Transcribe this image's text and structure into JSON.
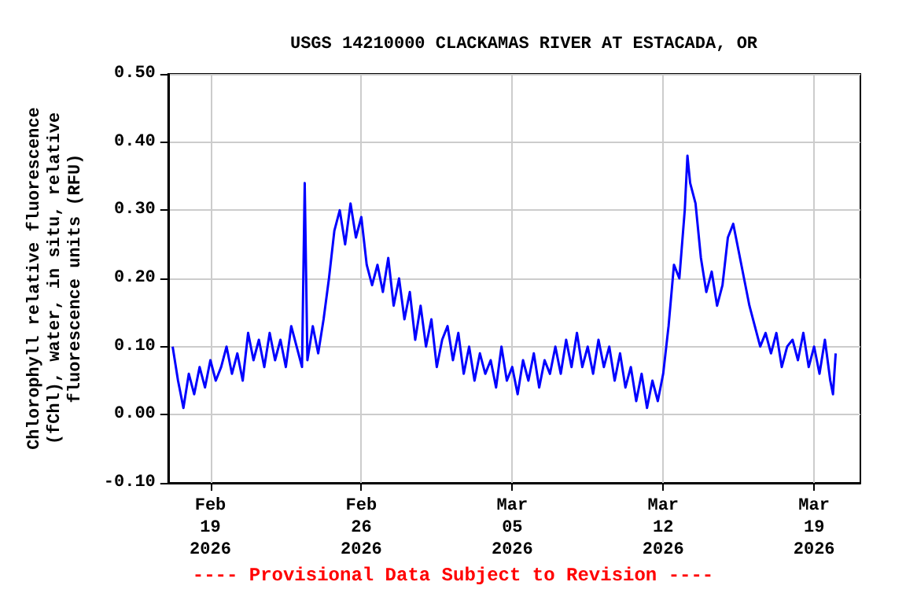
{
  "chart_data": {
    "type": "line",
    "title": "USGS 14210000 CLACKAMAS RIVER AT ESTACADA, OR",
    "ylabel": "Chlorophyll relative fluorescence\n(fChl), water, in situ, relative\nfluorescence units (RFU)",
    "annotations": [
      "---- Provisional Data Subject to Revision ----"
    ],
    "x": [
      "2026-02-17T06:00",
      "2026-02-17T12:00",
      "2026-02-17T18:00",
      "2026-02-18T00:00",
      "2026-02-18T06:00",
      "2026-02-18T12:00",
      "2026-02-18T18:00",
      "2026-02-19T00:00",
      "2026-02-19T06:00",
      "2026-02-19T12:00",
      "2026-02-19T18:00",
      "2026-02-20T00:00",
      "2026-02-20T06:00",
      "2026-02-20T12:00",
      "2026-02-20T18:00",
      "2026-02-21T00:00",
      "2026-02-21T06:00",
      "2026-02-21T12:00",
      "2026-02-21T18:00",
      "2026-02-22T00:00",
      "2026-02-22T06:00",
      "2026-02-22T12:00",
      "2026-02-22T18:00",
      "2026-02-23T00:00",
      "2026-02-23T06:00",
      "2026-02-23T09:00",
      "2026-02-23T12:00",
      "2026-02-23T18:00",
      "2026-02-24T00:00",
      "2026-02-24T06:00",
      "2026-02-24T12:00",
      "2026-02-24T18:00",
      "2026-02-25T00:00",
      "2026-02-25T06:00",
      "2026-02-25T12:00",
      "2026-02-25T18:00",
      "2026-02-26T00:00",
      "2026-02-26T06:00",
      "2026-02-26T12:00",
      "2026-02-26T18:00",
      "2026-02-27T00:00",
      "2026-02-27T06:00",
      "2026-02-27T12:00",
      "2026-02-27T18:00",
      "2026-02-28T00:00",
      "2026-02-28T06:00",
      "2026-02-28T12:00",
      "2026-02-28T18:00",
      "2026-03-01T00:00",
      "2026-03-01T06:00",
      "2026-03-01T12:00",
      "2026-03-01T18:00",
      "2026-03-02T00:00",
      "2026-03-02T06:00",
      "2026-03-02T12:00",
      "2026-03-02T18:00",
      "2026-03-03T00:00",
      "2026-03-03T06:00",
      "2026-03-03T12:00",
      "2026-03-03T18:00",
      "2026-03-04T00:00",
      "2026-03-04T06:00",
      "2026-03-04T12:00",
      "2026-03-04T18:00",
      "2026-03-05T00:00",
      "2026-03-05T06:00",
      "2026-03-05T12:00",
      "2026-03-05T18:00",
      "2026-03-06T00:00",
      "2026-03-06T06:00",
      "2026-03-06T12:00",
      "2026-03-06T18:00",
      "2026-03-07T00:00",
      "2026-03-07T06:00",
      "2026-03-07T12:00",
      "2026-03-07T18:00",
      "2026-03-08T00:00",
      "2026-03-08T06:00",
      "2026-03-08T12:00",
      "2026-03-08T18:00",
      "2026-03-09T00:00",
      "2026-03-09T06:00",
      "2026-03-09T12:00",
      "2026-03-09T18:00",
      "2026-03-10T00:00",
      "2026-03-10T06:00",
      "2026-03-10T12:00",
      "2026-03-10T18:00",
      "2026-03-11T00:00",
      "2026-03-11T06:00",
      "2026-03-11T12:00",
      "2026-03-11T18:00",
      "2026-03-12T00:00",
      "2026-03-12T06:00",
      "2026-03-12T12:00",
      "2026-03-12T18:00",
      "2026-03-13T00:00",
      "2026-03-13T03:00",
      "2026-03-13T06:00",
      "2026-03-13T12:00",
      "2026-03-13T18:00",
      "2026-03-14T00:00",
      "2026-03-14T06:00",
      "2026-03-14T12:00",
      "2026-03-14T18:00",
      "2026-03-15T00:00",
      "2026-03-15T06:00",
      "2026-03-15T12:00",
      "2026-03-15T18:00",
      "2026-03-16T00:00",
      "2026-03-16T06:00",
      "2026-03-16T12:00",
      "2026-03-16T18:00",
      "2026-03-17T00:00",
      "2026-03-17T06:00",
      "2026-03-17T12:00",
      "2026-03-17T18:00",
      "2026-03-18T00:00",
      "2026-03-18T06:00",
      "2026-03-18T12:00",
      "2026-03-18T18:00",
      "2026-03-19T00:00",
      "2026-03-19T06:00",
      "2026-03-19T12:00",
      "2026-03-19T18:00",
      "2026-03-19T21:00",
      "2026-03-20T00:00"
    ],
    "series": [
      {
        "color": "#0000ff",
        "values": [
          0.1,
          0.05,
          0.01,
          0.06,
          0.03,
          0.07,
          0.04,
          0.08,
          0.05,
          0.07,
          0.1,
          0.06,
          0.09,
          0.05,
          0.12,
          0.08,
          0.11,
          0.07,
          0.12,
          0.08,
          0.11,
          0.07,
          0.13,
          0.1,
          0.07,
          0.34,
          0.08,
          0.13,
          0.09,
          0.14,
          0.2,
          0.27,
          0.3,
          0.25,
          0.31,
          0.26,
          0.29,
          0.22,
          0.19,
          0.22,
          0.18,
          0.23,
          0.16,
          0.2,
          0.14,
          0.18,
          0.11,
          0.16,
          0.1,
          0.14,
          0.07,
          0.11,
          0.13,
          0.08,
          0.12,
          0.06,
          0.1,
          0.05,
          0.09,
          0.06,
          0.08,
          0.04,
          0.1,
          0.05,
          0.07,
          0.03,
          0.08,
          0.05,
          0.09,
          0.04,
          0.08,
          0.06,
          0.1,
          0.06,
          0.11,
          0.07,
          0.12,
          0.07,
          0.1,
          0.06,
          0.11,
          0.07,
          0.1,
          0.05,
          0.09,
          0.04,
          0.07,
          0.02,
          0.06,
          0.01,
          0.05,
          0.02,
          0.06,
          0.13,
          0.22,
          0.2,
          0.3,
          0.38,
          0.34,
          0.31,
          0.23,
          0.18,
          0.21,
          0.16,
          0.19,
          0.26,
          0.28,
          0.24,
          0.2,
          0.16,
          0.13,
          0.1,
          0.12,
          0.09,
          0.12,
          0.07,
          0.1,
          0.11,
          0.08,
          0.12,
          0.07,
          0.1,
          0.06,
          0.11,
          0.05,
          0.03,
          0.09
        ]
      }
    ],
    "xlim": [
      "2026-02-17T01:00",
      "2026-03-21T03:30"
    ],
    "xticks": [
      {
        "value": "2026-02-19",
        "label": "Feb\n19\n2026"
      },
      {
        "value": "2026-02-26",
        "label": "Feb\n26\n2026"
      },
      {
        "value": "2026-03-05",
        "label": "Mar\n05\n2026"
      },
      {
        "value": "2026-03-12",
        "label": "Mar\n12\n2026"
      },
      {
        "value": "2026-03-19",
        "label": "Mar\n19\n2026"
      }
    ],
    "ylim": [
      -0.1,
      0.5
    ],
    "yticks": [
      {
        "value": -0.1,
        "label": "-0.10"
      },
      {
        "value": 0,
        "label": "0.00"
      },
      {
        "value": 0.1,
        "label": "0.10"
      },
      {
        "value": 0.2,
        "label": "0.20"
      },
      {
        "value": 0.3,
        "label": "0.30"
      },
      {
        "value": 0.4,
        "label": "0.40"
      },
      {
        "value": 0.5,
        "label": "0.50"
      }
    ],
    "grid": true
  }
}
